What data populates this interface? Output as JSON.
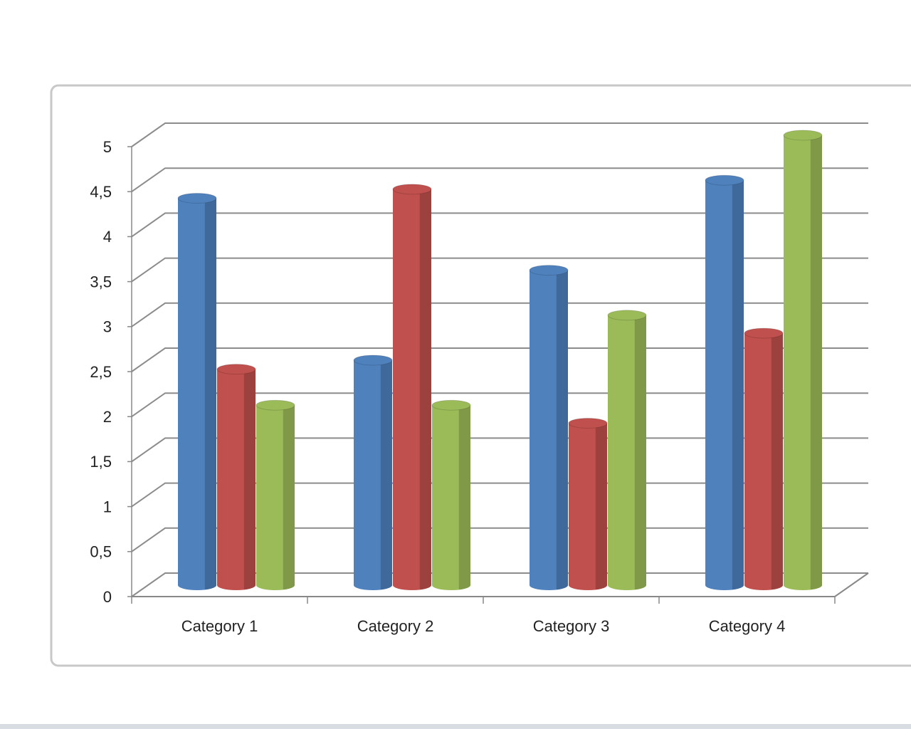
{
  "chart_data": {
    "type": "bar3d",
    "categories": [
      "Category 1",
      "Category 2",
      "Category 3",
      "Category 4"
    ],
    "series": [
      {
        "color": "#4f81bd",
        "values": [
          4.3,
          2.5,
          3.5,
          4.5
        ]
      },
      {
        "color": "#c0504d",
        "values": [
          2.4,
          4.4,
          1.8,
          2.8
        ]
      },
      {
        "color": "#9bbb59",
        "values": [
          2,
          2,
          3,
          5
        ]
      }
    ],
    "ylim": [
      0,
      5
    ],
    "yticks": [
      0,
      {
        "value": 0.5,
        "label": "0,5"
      },
      1,
      {
        "value": 1.5,
        "label": "1,5"
      },
      2,
      {
        "value": 2.5,
        "label": "2,5"
      },
      3,
      {
        "value": 3.5,
        "label": "3,5"
      },
      4,
      {
        "value": 4.5,
        "label": "4,5"
      },
      5
    ],
    "grid": true
  }
}
